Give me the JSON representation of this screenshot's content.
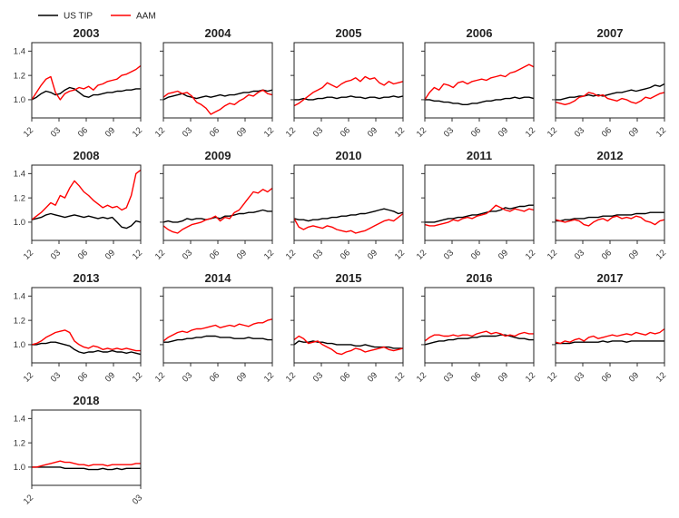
{
  "legend": [
    {
      "name": "US TIP",
      "color": "#000000"
    },
    {
      "name": "AAM",
      "color": "#ff0000"
    }
  ],
  "chart_data": {
    "type": "line",
    "layout": "small-multiples",
    "ylim": [
      0.85,
      1.47
    ],
    "yticks": [
      1.0,
      1.2,
      1.4
    ],
    "ytick_labels": [
      "1.0",
      "1.2",
      "1.4"
    ],
    "series_names": [
      "US TIP",
      "AAM"
    ],
    "colors": {
      "US TIP": "#000000",
      "AAM": "#ff0000"
    },
    "xtick_labels_default": [
      "12",
      "03",
      "06",
      "09",
      "12"
    ],
    "panels": [
      {
        "title": "2003",
        "xticks": [
          "12",
          "03",
          "06",
          "09",
          "12"
        ],
        "us_tip": [
          1.0,
          1.02,
          1.05,
          1.07,
          1.06,
          1.04,
          1.05,
          1.08,
          1.1,
          1.09,
          1.06,
          1.03,
          1.02,
          1.04,
          1.04,
          1.05,
          1.06,
          1.06,
          1.07,
          1.07,
          1.08,
          1.08,
          1.09,
          1.09
        ],
        "aam": [
          1.0,
          1.06,
          1.12,
          1.17,
          1.19,
          1.06,
          1.0,
          1.05,
          1.07,
          1.08,
          1.1,
          1.09,
          1.11,
          1.08,
          1.12,
          1.13,
          1.15,
          1.16,
          1.17,
          1.2,
          1.21,
          1.23,
          1.25,
          1.28
        ]
      },
      {
        "title": "2004",
        "xticks": [
          "12",
          "03",
          "06",
          "09",
          "12"
        ],
        "us_tip": [
          1.0,
          1.02,
          1.03,
          1.04,
          1.05,
          1.03,
          1.02,
          1.01,
          1.02,
          1.03,
          1.02,
          1.03,
          1.04,
          1.03,
          1.04,
          1.04,
          1.05,
          1.06,
          1.06,
          1.07,
          1.07,
          1.08,
          1.07,
          1.08
        ],
        "aam": [
          1.02,
          1.05,
          1.06,
          1.07,
          1.05,
          1.06,
          1.03,
          0.98,
          0.96,
          0.93,
          0.88,
          0.9,
          0.92,
          0.95,
          0.97,
          0.96,
          0.99,
          1.01,
          1.04,
          1.03,
          1.06,
          1.08,
          1.05,
          1.04
        ]
      },
      {
        "title": "2005",
        "xticks": [
          "12",
          "03",
          "06",
          "09",
          "12"
        ],
        "us_tip": [
          1.0,
          1.0,
          1.01,
          1.0,
          1.0,
          1.01,
          1.01,
          1.02,
          1.02,
          1.01,
          1.02,
          1.02,
          1.03,
          1.02,
          1.02,
          1.01,
          1.02,
          1.02,
          1.01,
          1.02,
          1.02,
          1.03,
          1.02,
          1.03
        ],
        "aam": [
          0.95,
          0.97,
          1.0,
          1.03,
          1.06,
          1.08,
          1.1,
          1.14,
          1.12,
          1.1,
          1.13,
          1.15,
          1.16,
          1.18,
          1.15,
          1.19,
          1.17,
          1.18,
          1.14,
          1.12,
          1.15,
          1.13,
          1.14,
          1.15
        ]
      },
      {
        "title": "2006",
        "xticks": [
          "12",
          "03",
          "06",
          "09",
          "12"
        ],
        "us_tip": [
          1.0,
          1.0,
          0.99,
          0.99,
          0.98,
          0.98,
          0.97,
          0.97,
          0.96,
          0.96,
          0.97,
          0.97,
          0.98,
          0.99,
          0.99,
          1.0,
          1.0,
          1.01,
          1.01,
          1.02,
          1.01,
          1.02,
          1.02,
          1.01
        ],
        "aam": [
          1.0,
          1.06,
          1.1,
          1.08,
          1.13,
          1.12,
          1.1,
          1.14,
          1.15,
          1.13,
          1.15,
          1.16,
          1.17,
          1.16,
          1.18,
          1.19,
          1.2,
          1.19,
          1.22,
          1.23,
          1.25,
          1.27,
          1.29,
          1.27
        ]
      },
      {
        "title": "2007",
        "xticks": [
          "12",
          "03",
          "06",
          "09",
          "12"
        ],
        "us_tip": [
          1.0,
          1.0,
          1.01,
          1.02,
          1.02,
          1.03,
          1.03,
          1.04,
          1.03,
          1.04,
          1.03,
          1.04,
          1.05,
          1.06,
          1.06,
          1.07,
          1.08,
          1.07,
          1.08,
          1.09,
          1.1,
          1.12,
          1.11,
          1.13
        ],
        "aam": [
          0.98,
          0.97,
          0.96,
          0.97,
          0.99,
          1.02,
          1.03,
          1.06,
          1.05,
          1.03,
          1.04,
          1.01,
          1.0,
          0.99,
          1.01,
          1.0,
          0.98,
          0.97,
          0.99,
          1.02,
          1.01,
          1.03,
          1.05,
          1.06
        ]
      },
      {
        "title": "2008",
        "xticks": [
          "12",
          "03",
          "06",
          "09",
          "12"
        ],
        "us_tip": [
          1.02,
          1.03,
          1.04,
          1.06,
          1.07,
          1.06,
          1.05,
          1.04,
          1.05,
          1.06,
          1.05,
          1.04,
          1.05,
          1.04,
          1.03,
          1.04,
          1.03,
          1.04,
          1.0,
          0.96,
          0.95,
          0.97,
          1.01,
          1.0
        ],
        "aam": [
          1.02,
          1.05,
          1.08,
          1.12,
          1.16,
          1.14,
          1.22,
          1.2,
          1.28,
          1.34,
          1.3,
          1.25,
          1.22,
          1.18,
          1.15,
          1.12,
          1.14,
          1.12,
          1.13,
          1.1,
          1.12,
          1.22,
          1.4,
          1.43
        ]
      },
      {
        "title": "2009",
        "xticks": [
          "12",
          "03",
          "06",
          "09",
          "12"
        ],
        "us_tip": [
          1.0,
          1.01,
          1.0,
          1.0,
          1.01,
          1.03,
          1.02,
          1.03,
          1.03,
          1.02,
          1.03,
          1.04,
          1.03,
          1.05,
          1.05,
          1.06,
          1.07,
          1.07,
          1.08,
          1.08,
          1.09,
          1.1,
          1.09,
          1.09
        ],
        "aam": [
          0.97,
          0.94,
          0.92,
          0.91,
          0.94,
          0.96,
          0.98,
          0.99,
          1.0,
          1.02,
          1.03,
          1.05,
          1.01,
          1.04,
          1.03,
          1.08,
          1.1,
          1.15,
          1.2,
          1.25,
          1.24,
          1.27,
          1.25,
          1.28
        ]
      },
      {
        "title": "2010",
        "xticks": [
          "12",
          "03",
          "06",
          "09",
          "12"
        ],
        "us_tip": [
          1.03,
          1.02,
          1.02,
          1.01,
          1.02,
          1.02,
          1.03,
          1.03,
          1.04,
          1.04,
          1.05,
          1.05,
          1.06,
          1.06,
          1.07,
          1.07,
          1.08,
          1.09,
          1.1,
          1.11,
          1.1,
          1.09,
          1.07,
          1.08
        ],
        "aam": [
          1.03,
          0.96,
          0.94,
          0.96,
          0.97,
          0.96,
          0.95,
          0.97,
          0.96,
          0.94,
          0.93,
          0.92,
          0.93,
          0.91,
          0.92,
          0.93,
          0.95,
          0.97,
          0.99,
          1.01,
          1.02,
          1.01,
          1.04,
          1.07
        ]
      },
      {
        "title": "2011",
        "xticks": [
          "12",
          "03",
          "06",
          "09",
          "12"
        ],
        "us_tip": [
          1.0,
          1.0,
          1.0,
          1.01,
          1.02,
          1.03,
          1.03,
          1.04,
          1.04,
          1.05,
          1.06,
          1.06,
          1.07,
          1.08,
          1.09,
          1.09,
          1.1,
          1.12,
          1.11,
          1.12,
          1.13,
          1.13,
          1.14,
          1.14
        ],
        "aam": [
          0.98,
          0.97,
          0.97,
          0.98,
          0.99,
          1.0,
          1.02,
          1.01,
          1.03,
          1.04,
          1.03,
          1.05,
          1.06,
          1.07,
          1.1,
          1.14,
          1.12,
          1.1,
          1.09,
          1.11,
          1.1,
          1.09,
          1.11,
          1.1
        ]
      },
      {
        "title": "2012",
        "xticks": [
          "12",
          "03",
          "06",
          "09",
          "12"
        ],
        "us_tip": [
          1.01,
          1.01,
          1.02,
          1.02,
          1.03,
          1.03,
          1.03,
          1.04,
          1.04,
          1.04,
          1.05,
          1.05,
          1.05,
          1.06,
          1.06,
          1.06,
          1.06,
          1.07,
          1.07,
          1.07,
          1.08,
          1.08,
          1.08,
          1.08
        ],
        "aam": [
          1.02,
          1.01,
          1.0,
          1.01,
          1.02,
          1.01,
          0.98,
          0.97,
          1.0,
          1.02,
          1.03,
          1.01,
          1.04,
          1.05,
          1.03,
          1.04,
          1.03,
          1.05,
          1.04,
          1.01,
          1.0,
          0.98,
          1.01,
          1.02
        ]
      },
      {
        "title": "2013",
        "xticks": [
          "12",
          "03",
          "06",
          "09",
          "12"
        ],
        "us_tip": [
          1.0,
          1.0,
          1.01,
          1.01,
          1.02,
          1.02,
          1.01,
          1.0,
          0.99,
          0.96,
          0.94,
          0.93,
          0.94,
          0.94,
          0.95,
          0.94,
          0.94,
          0.95,
          0.94,
          0.94,
          0.93,
          0.94,
          0.93,
          0.92
        ],
        "aam": [
          1.0,
          1.01,
          1.03,
          1.06,
          1.08,
          1.1,
          1.11,
          1.12,
          1.1,
          1.03,
          1.0,
          0.98,
          0.97,
          0.99,
          0.98,
          0.96,
          0.97,
          0.96,
          0.97,
          0.96,
          0.97,
          0.96,
          0.95,
          0.95
        ]
      },
      {
        "title": "2014",
        "xticks": [
          "12",
          "03",
          "06",
          "09",
          "12"
        ],
        "us_tip": [
          1.02,
          1.02,
          1.03,
          1.04,
          1.04,
          1.05,
          1.05,
          1.06,
          1.06,
          1.07,
          1.07,
          1.07,
          1.06,
          1.06,
          1.06,
          1.05,
          1.05,
          1.05,
          1.06,
          1.05,
          1.05,
          1.05,
          1.04,
          1.04
        ],
        "aam": [
          1.03,
          1.06,
          1.08,
          1.1,
          1.11,
          1.1,
          1.12,
          1.13,
          1.13,
          1.14,
          1.15,
          1.16,
          1.14,
          1.15,
          1.16,
          1.15,
          1.17,
          1.16,
          1.15,
          1.17,
          1.18,
          1.18,
          1.2,
          1.21
        ]
      },
      {
        "title": "2015",
        "xticks": [
          "12",
          "03",
          "06",
          "09",
          "12"
        ],
        "us_tip": [
          1.0,
          1.03,
          1.02,
          1.02,
          1.03,
          1.02,
          1.02,
          1.01,
          1.01,
          1.0,
          1.0,
          1.0,
          1.0,
          0.99,
          0.99,
          1.0,
          0.99,
          0.98,
          0.98,
          0.98,
          0.98,
          0.97,
          0.97,
          0.97
        ],
        "aam": [
          1.04,
          1.07,
          1.05,
          1.01,
          1.02,
          1.03,
          1.0,
          0.98,
          0.96,
          0.93,
          0.92,
          0.94,
          0.95,
          0.97,
          0.96,
          0.94,
          0.95,
          0.96,
          0.97,
          0.98,
          0.96,
          0.95,
          0.96,
          0.97
        ]
      },
      {
        "title": "2016",
        "xticks": [
          "12",
          "03",
          "06",
          "09",
          "12"
        ],
        "us_tip": [
          1.0,
          1.01,
          1.02,
          1.03,
          1.03,
          1.04,
          1.04,
          1.05,
          1.05,
          1.05,
          1.06,
          1.06,
          1.07,
          1.07,
          1.07,
          1.07,
          1.08,
          1.08,
          1.07,
          1.06,
          1.05,
          1.05,
          1.04,
          1.04
        ],
        "aam": [
          1.03,
          1.06,
          1.08,
          1.08,
          1.07,
          1.07,
          1.08,
          1.07,
          1.08,
          1.08,
          1.07,
          1.09,
          1.1,
          1.11,
          1.09,
          1.1,
          1.09,
          1.07,
          1.08,
          1.07,
          1.09,
          1.1,
          1.09,
          1.09
        ]
      },
      {
        "title": "2017",
        "xticks": [
          "12",
          "03",
          "06",
          "09",
          "12"
        ],
        "us_tip": [
          1.01,
          1.01,
          1.01,
          1.01,
          1.02,
          1.02,
          1.02,
          1.02,
          1.02,
          1.02,
          1.03,
          1.02,
          1.03,
          1.03,
          1.03,
          1.02,
          1.03,
          1.03,
          1.03,
          1.03,
          1.03,
          1.03,
          1.03,
          1.03
        ],
        "aam": [
          1.02,
          1.01,
          1.03,
          1.02,
          1.04,
          1.05,
          1.03,
          1.06,
          1.07,
          1.05,
          1.06,
          1.07,
          1.08,
          1.07,
          1.08,
          1.09,
          1.08,
          1.1,
          1.09,
          1.08,
          1.1,
          1.09,
          1.1,
          1.13
        ]
      },
      {
        "title": "2018",
        "xticks": [
          "12",
          "03"
        ],
        "us_tip": [
          1.0,
          1.0,
          1.0,
          1.0,
          1.0,
          1.0,
          1.0,
          0.99,
          0.99,
          0.99,
          0.99,
          0.99,
          0.98,
          0.98,
          0.98,
          0.99,
          0.98,
          0.98,
          0.99,
          0.98,
          0.99,
          0.99,
          0.99,
          0.99
        ],
        "aam": [
          1.0,
          1.0,
          1.01,
          1.02,
          1.03,
          1.04,
          1.05,
          1.04,
          1.04,
          1.03,
          1.02,
          1.02,
          1.01,
          1.02,
          1.02,
          1.02,
          1.01,
          1.02,
          1.02,
          1.02,
          1.02,
          1.02,
          1.03,
          1.03
        ]
      }
    ]
  }
}
